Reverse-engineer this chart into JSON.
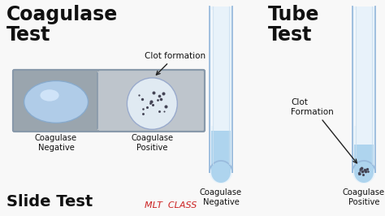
{
  "bg_color": "#f8f8f8",
  "title_coagulase": "Coagulase\nTest",
  "title_tube": "Tube\nTest",
  "slide_test_label": "Slide Test",
  "mlt_class_label": "MLT  CLASS",
  "mlt_color": "#cc2222",
  "clot_formation_slide": "Clot formation",
  "clot_formation_tube": "Clot\nFormation",
  "coag_neg": "Coagulase\nNegative",
  "coag_pos": "Coagulase\nPositive",
  "slide_border": "#8899aa",
  "slide_left_bg": "#9aa5ae",
  "slide_right_bg": "#bec5cc",
  "tube_glass_color": "#e8f2fa",
  "tube_glass_edge": "#99bbdd",
  "tube_liquid_color": "#aed4ee",
  "tube_inner_edge": "#88aacc",
  "ellipse_neg_color": "#b0cce8",
  "ellipse_neg_edge": "#88aacc",
  "ellipse_pos_color": "#e0eaf2",
  "ellipse_pos_edge": "#99aacc",
  "dot_color": "#444455",
  "arrow_color": "#222222",
  "text_color": "#111111"
}
